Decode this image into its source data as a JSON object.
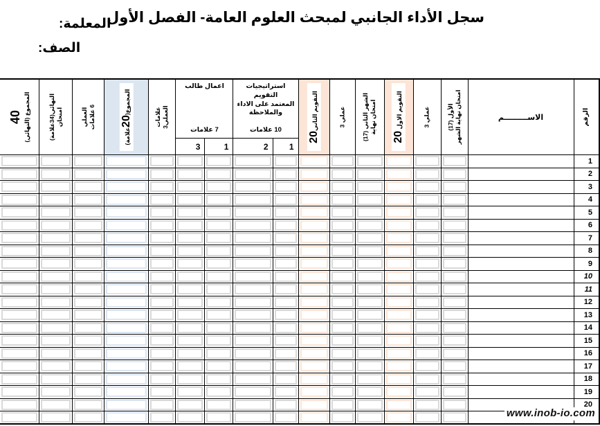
{
  "page": {
    "title": "سجل الأداء الجانبي لمبحث العلوم العامة- الفصل الأول",
    "teacher_label": "المعلمة:",
    "class_label": "الصف:",
    "watermark": "www.inob-io.com"
  },
  "colors": {
    "highlight_peach": "#fce4d6",
    "highlight_blue": "#dce6f1",
    "cell_inner_gray": "#d9d9d9",
    "grid": "#000000"
  },
  "header": {
    "num": "الرقم",
    "name": "الاســـــــــم",
    "exam_month1": "الأول (17)\nامتحان نهاية الشهر",
    "practical3_first": "عملي 3",
    "eval1_label": "التقويم الاول ",
    "eval1_value": "20",
    "exam_month2": "الشهر الثاني (17)\nامتحان نهاية",
    "practical3_second": "عملي 3",
    "eval2_label": "التقويم الثاني",
    "eval2_value": "20",
    "strategies_title": "استراتيجيات التقويم\nالمعتمد على الاداء\nوالملاحظة",
    "strategies_marks": "10 علامات",
    "strategies_sub_right": "1",
    "strategies_sub_left": "2",
    "studentwork_title": "اعمال طالب",
    "studentwork_marks": "7 علامات",
    "studentwork_sub_right": "1",
    "studentwork_sub_left": "3",
    "practical3_marks": "علامات\nالعملي3",
    "sum20_pre": "المجموع(",
    "sum20_value": "20",
    "sum20_post": "علامة)",
    "practical6": "العملي\n6 علامات",
    "final_exam": "النهائي(34علامة)\nامتحان",
    "final_total_value": "40",
    "final_total_label": "المجموع (النهائي)"
  },
  "rows": [
    {
      "num": "1"
    },
    {
      "num": "2"
    },
    {
      "num": "3"
    },
    {
      "num": "4"
    },
    {
      "num": "5"
    },
    {
      "num": "6"
    },
    {
      "num": "7"
    },
    {
      "num": "8"
    },
    {
      "num": "9"
    },
    {
      "num": "10",
      "italic": true
    },
    {
      "num": "11",
      "italic": true
    },
    {
      "num": "12"
    },
    {
      "num": "13"
    },
    {
      "num": "14"
    },
    {
      "num": "15"
    },
    {
      "num": "16"
    },
    {
      "num": "17"
    },
    {
      "num": "18"
    },
    {
      "num": "19"
    },
    {
      "num": "20"
    }
  ]
}
